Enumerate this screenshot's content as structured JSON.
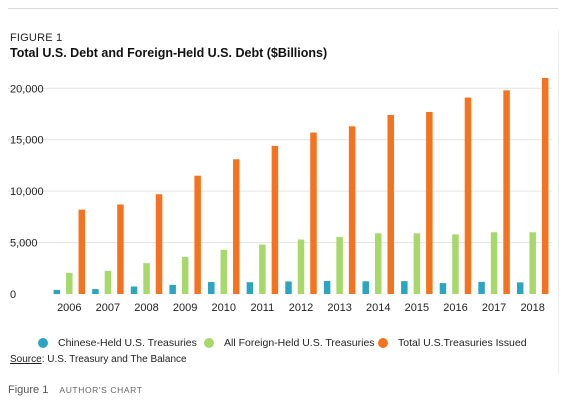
{
  "figure": {
    "label": "FIGURE 1",
    "title": "Total U.S. Debt and Foreign-Held U.S. Debt ($Billions)",
    "source_label": "Source",
    "source_text": ": U.S. Treasury and The Balance"
  },
  "caption": {
    "figure": "Figure 1",
    "credit": "AUTHOR'S CHART"
  },
  "colors": {
    "chinese": "#2ba5c2",
    "foreign": "#a6d96a",
    "total": "#f5731e",
    "grid": "#e3e3e3",
    "axis_text": "#222222"
  },
  "chart_data": {
    "type": "bar",
    "title": "Total U.S. Debt and Foreign-Held U.S. Debt ($Billions)",
    "categories": [
      "2006",
      "2007",
      "2008",
      "2009",
      "2010",
      "2011",
      "2012",
      "2013",
      "2014",
      "2015",
      "2016",
      "2017",
      "2018"
    ],
    "series": [
      {
        "name": "Chinese-Held U.S. Treasuries",
        "values": [
          400,
          480,
          730,
          890,
          1160,
          1150,
          1220,
          1270,
          1240,
          1250,
          1060,
          1180,
          1130
        ]
      },
      {
        "name": "All Foreign-Held U.S. Treasuries",
        "values": [
          2050,
          2250,
          3000,
          3600,
          4300,
          4800,
          5300,
          5550,
          5900,
          5900,
          5800,
          6000,
          6000
        ]
      },
      {
        "name": "Total U.S.Treasuries Issued",
        "values": [
          8200,
          8700,
          9700,
          11500,
          13100,
          14400,
          15700,
          16300,
          17400,
          17700,
          19100,
          19800,
          21000
        ]
      }
    ],
    "yticks": [
      "0",
      "5,000",
      "10,000",
      "15,000",
      "20,000"
    ],
    "ylim": [
      0,
      21000
    ],
    "grid": true,
    "legend_position": "bottom"
  }
}
